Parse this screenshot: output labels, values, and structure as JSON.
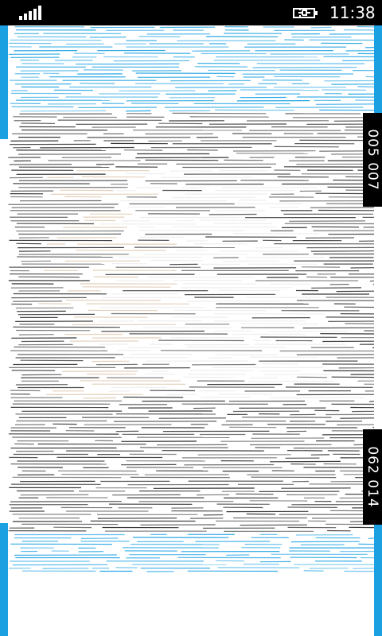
{
  "status_bar": {
    "time": "11:38",
    "signal_icon": "signal-bars-icon",
    "battery_icon": "charging-battery-icon"
  },
  "side_labels": {
    "top": "005 007",
    "bottom": "062 014"
  },
  "colors": {
    "accent": "#1ba1e2",
    "status_bar_bg": "#000000",
    "content_bg": "#ffffff",
    "line_dark": "#2a2a2a",
    "line_blue": "#1ba1e2",
    "line_warm": "#c8a27a"
  }
}
